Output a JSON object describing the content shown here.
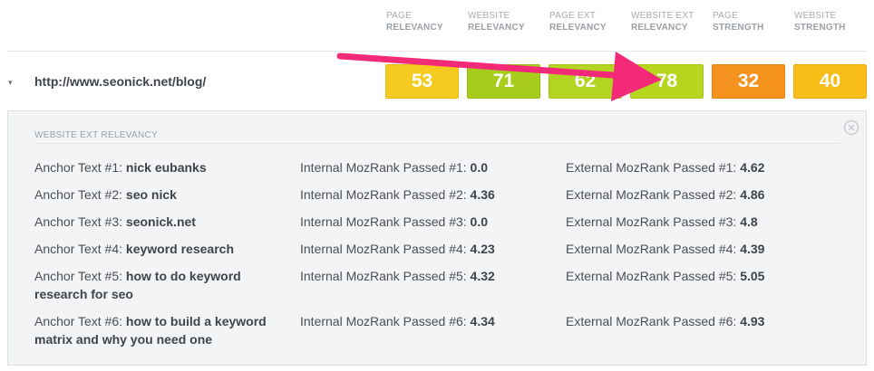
{
  "headers": [
    {
      "line1": "PAGE",
      "line2": "RELEVANCY"
    },
    {
      "line1": "WEBSITE",
      "line2": "RELEVANCY"
    },
    {
      "line1": "PAGE EXT",
      "line2": "RELEVANCY"
    },
    {
      "line1": "WEBSITE EXT",
      "line2": "RELEVANCY"
    },
    {
      "line1": "PAGE",
      "line2": "STRENGTH"
    },
    {
      "line1": "WEBSITE",
      "line2": "STRENGTH"
    }
  ],
  "row": {
    "caret": "▾",
    "url": "http://www.seonick.net/blog/",
    "scores": [
      "53",
      "71",
      "62",
      "78",
      "32",
      "40"
    ]
  },
  "colors": {
    "score_bg": [
      "#f6cb1f",
      "#a8cc1c",
      "#b4d422",
      "#b7d61e",
      "#f6931f",
      "#f9bd18"
    ],
    "score_border": [
      "#e7b812",
      "#97b915",
      "#a3c11a",
      "#a5c318",
      "#e6830f",
      "#eaa90f"
    ],
    "arrow": "#f22a78"
  },
  "panel": {
    "title": "WEBSITE EXT RELEVANCY",
    "rows": [
      {
        "anchor_label": "Anchor Text #1: ",
        "anchor_value": "nick eubanks",
        "internal_label": "Internal MozRank Passed #1: ",
        "internal_value": "0.0",
        "external_label": "External MozRank Passed #1: ",
        "external_value": "4.62"
      },
      {
        "anchor_label": "Anchor Text #2: ",
        "anchor_value": "seo nick",
        "internal_label": "Internal MozRank Passed #2: ",
        "internal_value": "4.36",
        "external_label": "External MozRank Passed #2: ",
        "external_value": "4.86"
      },
      {
        "anchor_label": "Anchor Text #3: ",
        "anchor_value": "seonick.net",
        "internal_label": "Internal MozRank Passed #3: ",
        "internal_value": "0.0",
        "external_label": "External MozRank Passed #3: ",
        "external_value": "4.8"
      },
      {
        "anchor_label": "Anchor Text #4: ",
        "anchor_value": "keyword research",
        "internal_label": "Internal MozRank Passed #4: ",
        "internal_value": "4.23",
        "external_label": "External MozRank Passed #4: ",
        "external_value": "4.39"
      },
      {
        "anchor_label": "Anchor Text #5: ",
        "anchor_value": "how to do keyword research for seo",
        "internal_label": "Internal MozRank Passed #5: ",
        "internal_value": "4.32",
        "external_label": "External MozRank Passed #5: ",
        "external_value": "5.05"
      },
      {
        "anchor_label": "Anchor Text #6: ",
        "anchor_value": "how to build a keyword matrix and why you need one",
        "internal_label": "Internal MozRank Passed #6: ",
        "internal_value": "4.34",
        "external_label": "External MozRank Passed #6: ",
        "external_value": "4.93"
      }
    ]
  }
}
